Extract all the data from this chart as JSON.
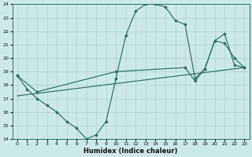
{
  "xlabel": "Humidex (Indice chaleur)",
  "bg_color": "#cce8e8",
  "line_color": "#2a7060",
  "grid_color": "#a8cccc",
  "xlim": [
    -0.5,
    23.5
  ],
  "ylim": [
    14,
    24
  ],
  "xticks": [
    0,
    1,
    2,
    3,
    4,
    5,
    6,
    7,
    8,
    9,
    10,
    11,
    12,
    13,
    14,
    15,
    16,
    17,
    18,
    19,
    20,
    21,
    22,
    23
  ],
  "yticks": [
    14,
    15,
    16,
    17,
    18,
    19,
    20,
    21,
    22,
    23,
    24
  ],
  "line1_x": [
    0,
    1,
    2,
    3,
    4,
    5,
    6,
    7,
    8,
    9,
    10,
    11,
    12,
    13,
    14,
    15,
    16,
    17,
    18,
    19,
    20,
    21,
    22,
    23
  ],
  "line1_y": [
    18.7,
    17.7,
    17.0,
    16.5,
    16.0,
    15.3,
    14.8,
    14.0,
    14.3,
    15.3,
    18.5,
    21.7,
    23.5,
    24.0,
    24.0,
    23.8,
    22.8,
    22.5,
    18.5,
    19.2,
    21.3,
    21.1,
    20.0,
    19.3
  ],
  "line2_x": [
    0,
    2,
    10,
    17,
    18,
    19,
    20,
    21,
    22,
    23
  ],
  "line2_y": [
    18.7,
    17.5,
    19.0,
    19.3,
    18.3,
    19.2,
    21.3,
    21.8,
    19.5,
    19.3
  ],
  "line3_x": [
    0,
    23
  ],
  "line3_y": [
    17.2,
    19.3
  ]
}
